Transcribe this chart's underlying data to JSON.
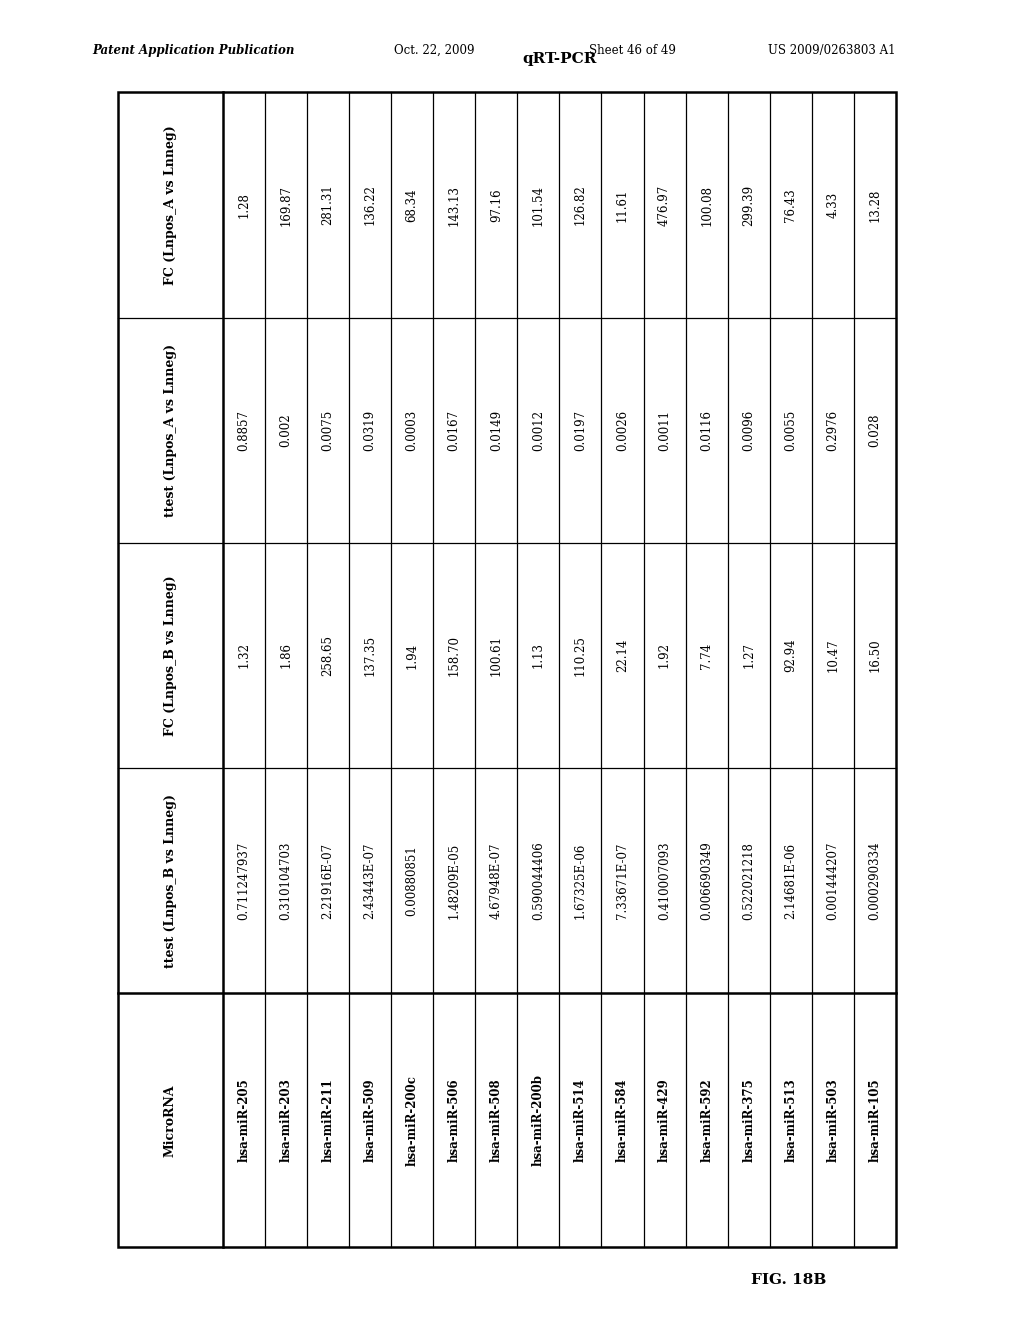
{
  "title_header": "Patent Application Publication",
  "date_header": "Oct. 22, 2009",
  "sheet_header": "Sheet 46 of 49",
  "patent_header": "US 2009/0263803 A1",
  "table_title": "qRT-PCR",
  "fig_label": "FIG. 18B",
  "columns": [
    "MicroRNA",
    "ttest (Lnpos_B vs Lnneg)",
    "FC (Lnpos_B vs Lnneg)",
    "ttest (Lnpos_A vs Lnneg)",
    "FC (Lnpos_A vs Lnneg)"
  ],
  "rows": [
    [
      "hsa-miR-205",
      "0.711247937",
      "1.32",
      "0.8857",
      "1.28"
    ],
    [
      "hsa-miR-203",
      "0.310104703",
      "1.86",
      "0.002",
      "169.87"
    ],
    [
      "hsa-miR-211",
      "2.21916E-07",
      "258.65",
      "0.0075",
      "281.31"
    ],
    [
      "hsa-miR-509",
      "2.43443E-07",
      "137.35",
      "0.0319",
      "136.22"
    ],
    [
      "hsa-miR-200c",
      "0.00880851",
      "1.94",
      "0.0003",
      "68.34"
    ],
    [
      "hsa-miR-506",
      "1.48209E-05",
      "158.70",
      "0.0167",
      "143.13"
    ],
    [
      "hsa-miR-508",
      "4.67948E-07",
      "100.61",
      "0.0149",
      "97.16"
    ],
    [
      "hsa-miR-200b",
      "0.590044406",
      "1.13",
      "0.0012",
      "101.54"
    ],
    [
      "hsa-miR-514",
      "1.67325E-06",
      "110.25",
      "0.0197",
      "126.82"
    ],
    [
      "hsa-miR-584",
      "7.33671E-07",
      "22.14",
      "0.0026",
      "11.61"
    ],
    [
      "hsa-miR-429",
      "0.410007093",
      "1.92",
      "0.0011",
      "476.97"
    ],
    [
      "hsa-miR-592",
      "0.006690349",
      "7.74",
      "0.0116",
      "100.08"
    ],
    [
      "hsa-miR-375",
      "0.522021218",
      "1.27",
      "0.0096",
      "299.39"
    ],
    [
      "hsa-miR-513",
      "2.14681E-06",
      "92.94",
      "0.0055",
      "76.43"
    ],
    [
      "hsa-miR-503",
      "0.001444207",
      "10.47",
      "0.2976",
      "4.33"
    ],
    [
      "hsa-miR-105",
      "0.000290334",
      "16.50",
      "0.028",
      "13.28"
    ]
  ],
  "background_color": "#ffffff",
  "border_color": "#000000",
  "text_color": "#000000"
}
